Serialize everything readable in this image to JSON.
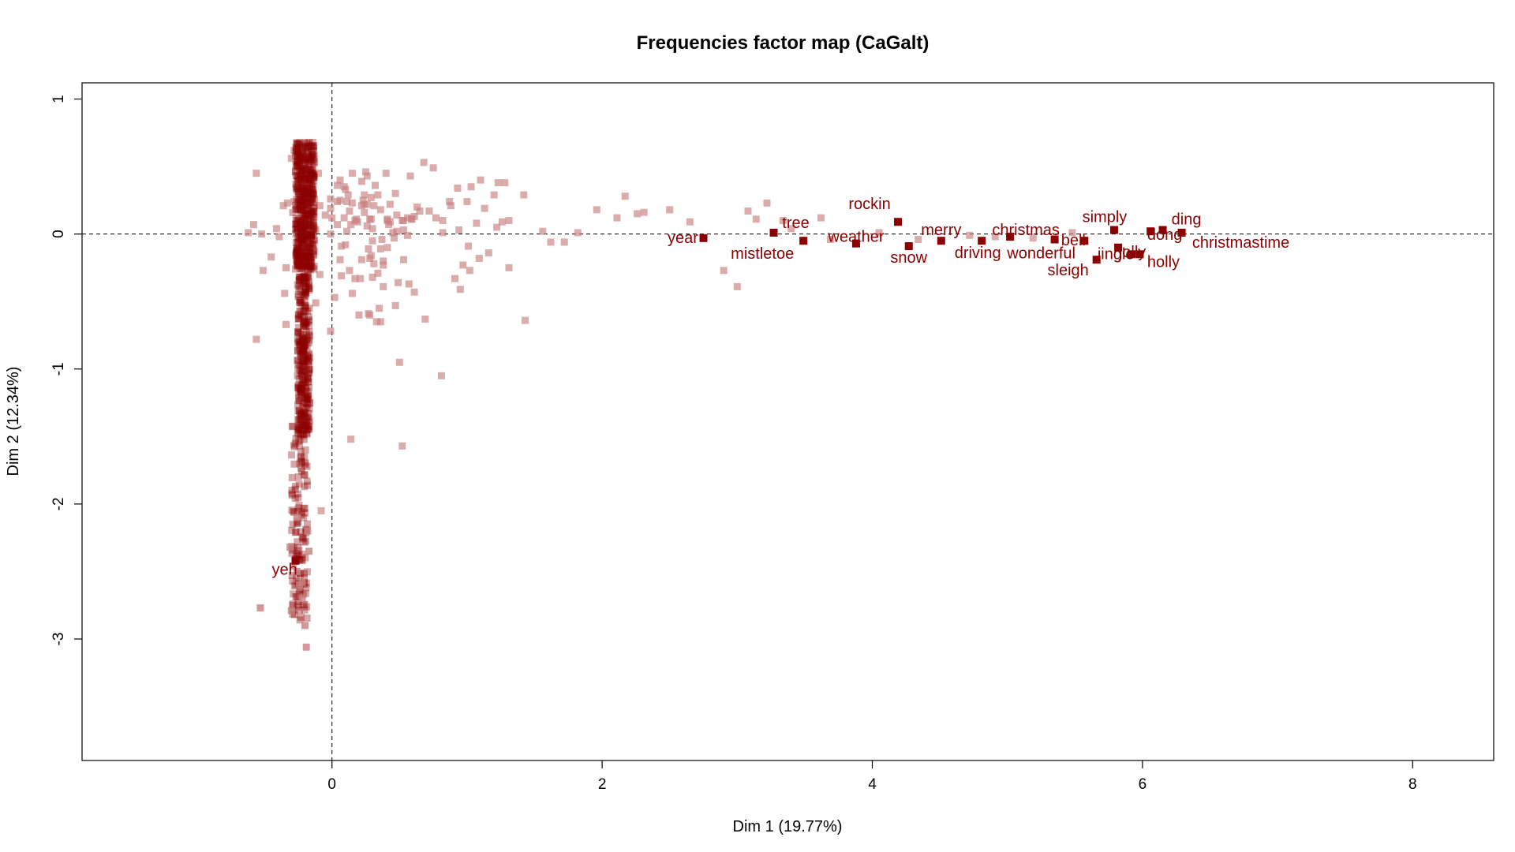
{
  "chart_data": {
    "type": "scatter",
    "title": "Frequencies factor map (CaGalt)",
    "xlabel": "Dim 1 (19.77%)",
    "ylabel": "Dim 2 (12.34%)",
    "xlim": [
      -1.85,
      8.6
    ],
    "ylim": [
      -3.9,
      1.12
    ],
    "xticks": [
      0,
      2,
      4,
      6,
      8
    ],
    "yticks": [
      1,
      0,
      -1,
      -2,
      -3
    ],
    "reference_lines": {
      "x": 0,
      "y": 0,
      "style": "dashed"
    },
    "grid": false,
    "legend": "none",
    "colors": {
      "labeled": "#8b0000",
      "unlabeled": "#c88080"
    },
    "labeled_points": [
      {
        "label": "yeh",
        "x": -0.27,
        "y": -2.42
      },
      {
        "label": "year",
        "x": 2.75,
        "y": -0.03
      },
      {
        "label": "tree",
        "x": 3.27,
        "y": 0.01
      },
      {
        "label": "mistletoe",
        "x": 3.49,
        "y": -0.05
      },
      {
        "label": "weather",
        "x": 3.88,
        "y": -0.07
      },
      {
        "label": "rockin",
        "x": 4.19,
        "y": 0.09
      },
      {
        "label": "snow",
        "x": 4.27,
        "y": -0.09
      },
      {
        "label": "merry",
        "x": 4.51,
        "y": -0.05
      },
      {
        "label": "driving",
        "x": 4.81,
        "y": -0.05
      },
      {
        "label": "christmas",
        "x": 5.02,
        "y": -0.02
      },
      {
        "label": "wonderful",
        "x": 5.35,
        "y": -0.04
      },
      {
        "label": "bell",
        "x": 5.57,
        "y": -0.05
      },
      {
        "label": "sleigh",
        "x": 5.66,
        "y": -0.19
      },
      {
        "label": "simply",
        "x": 5.79,
        "y": 0.03
      },
      {
        "label": "jolly",
        "x": 5.82,
        "y": -0.1
      },
      {
        "label": "jingle",
        "x": 5.92,
        "y": -0.15
      },
      {
        "label": "holly",
        "x": 5.98,
        "y": -0.15
      },
      {
        "label": "dong",
        "x": 6.06,
        "y": 0.02
      },
      {
        "label": "ding",
        "x": 6.15,
        "y": 0.03
      },
      {
        "label": "christmastime",
        "x": 6.29,
        "y": 0.01
      }
    ],
    "other_points": [
      [
        0.26,
        0.43
      ],
      [
        0.14,
        0.07
      ],
      [
        -0.51,
        -0.27
      ],
      [
        0.47,
        0.3
      ],
      [
        0.2,
        -0.6
      ],
      [
        -0.28,
        0.24
      ],
      [
        -0.3,
        0.56
      ],
      [
        0.26,
        0.22
      ],
      [
        0.04,
        0.36
      ],
      [
        0.61,
        0.13
      ],
      [
        -0.62,
        0.01
      ],
      [
        0.28,
        -0.6
      ],
      [
        0.41,
        -0.1
      ],
      [
        -0.56,
        0.45
      ],
      [
        0.49,
        -0.36
      ],
      [
        0.72,
        0.17
      ],
      [
        0.29,
        0.27
      ],
      [
        0.82,
        0.01
      ],
      [
        0.18,
        0.11
      ],
      [
        -0.29,
        0.16
      ],
      [
        -0.09,
        -0.3
      ],
      [
        0.29,
        0.11
      ],
      [
        0.34,
        -0.29
      ],
      [
        0.22,
        -0.19
      ],
      [
        0.11,
        0.02
      ],
      [
        -0.58,
        0.07
      ],
      [
        0.27,
        -0.59
      ],
      [
        0.57,
        -0.37
      ],
      [
        0.24,
        0.16
      ],
      [
        -0.2,
        0.11
      ],
      [
        0.11,
        0.24
      ],
      [
        0.1,
        0.33
      ],
      [
        0.53,
        -0.19
      ],
      [
        0.3,
        0.04
      ],
      [
        -0.35,
        -0.44
      ],
      [
        0.31,
        0.21
      ],
      [
        0.25,
        0.46
      ],
      [
        0.23,
        0.25
      ],
      [
        0.24,
        0.22
      ],
      [
        -0.24,
        0.54
      ],
      [
        0.22,
        0.39
      ],
      [
        -0.01,
        0.19
      ],
      [
        -0.05,
        0.14
      ],
      [
        0.19,
        0.09
      ],
      [
        0.61,
        -0.43
      ],
      [
        0.58,
        0.43
      ],
      [
        0.15,
        -0.44
      ],
      [
        -0.52,
        -0.0
      ],
      [
        0.38,
        -0.2
      ],
      [
        0.21,
        -0.33
      ],
      [
        0.02,
        -0.47
      ],
      [
        0.43,
        0.22
      ],
      [
        0.52,
        0.1
      ],
      [
        0.07,
        -0.09
      ],
      [
        -0.21,
        -0.04
      ],
      [
        0.06,
        0.4
      ],
      [
        0.15,
        0.23
      ],
      [
        0.06,
        -0.19
      ],
      [
        0.27,
        -0.11
      ],
      [
        -0.28,
        0.62
      ],
      [
        0.13,
        -0.27
      ],
      [
        0.59,
        0.11
      ],
      [
        0.48,
        0.14
      ],
      [
        -0.01,
        -0.0
      ],
      [
        0.65,
        0.17
      ],
      [
        0.04,
        0.07
      ],
      [
        0.28,
        -0.18
      ],
      [
        0.41,
        0.1
      ],
      [
        0.33,
        -0.65
      ],
      [
        0.26,
        0.06
      ],
      [
        0.3,
        -0.32
      ],
      [
        0.45,
        0.01
      ],
      [
        0.37,
        -0.04
      ],
      [
        -0.1,
        0.45
      ],
      [
        0.24,
        0.29
      ],
      [
        0.5,
        -0.95
      ],
      [
        0.53,
        0.1
      ],
      [
        -0.01,
        -0.72
      ],
      [
        0.04,
        0.24
      ],
      [
        0.47,
        -0.53
      ],
      [
        0.07,
        -0.31
      ],
      [
        0.42,
        0.07
      ],
      [
        0.13,
        0.17
      ],
      [
        0.09,
        0.35
      ],
      [
        0.17,
        -0.33
      ],
      [
        -0.12,
        -0.51
      ],
      [
        0.35,
        -0.55
      ],
      [
        0.43,
        0.09
      ],
      [
        0.36,
        -0.65
      ],
      [
        0.31,
        -0.22
      ],
      [
        0.22,
        0.21
      ],
      [
        -0.34,
        -0.67
      ],
      [
        0.46,
        -0.03
      ],
      [
        0.12,
        0.29
      ],
      [
        0.1,
        -0.08
      ],
      [
        -0.27,
        0.46
      ],
      [
        -0.09,
        0.21
      ],
      [
        0.29,
        -0.16
      ],
      [
        -0.36,
        0.21
      ],
      [
        0.41,
        0.11
      ],
      [
        0.36,
        -0.11
      ],
      [
        0.38,
        -0.39
      ],
      [
        -0.27,
        0.18
      ],
      [
        0.53,
        0.03
      ],
      [
        0.48,
        0.02
      ],
      [
        0.34,
        0.29
      ],
      [
        0.38,
        -0.23
      ],
      [
        0.15,
        0.45
      ],
      [
        0.17,
        0.1
      ],
      [
        -0.27,
        -0.26
      ],
      [
        -0.0,
        0.12
      ],
      [
        0.56,
        0.12
      ],
      [
        0.09,
        0.12
      ],
      [
        0.28,
        0.11
      ],
      [
        0.59,
        0.11
      ],
      [
        0.06,
        0.25
      ],
      [
        0.32,
        0.36
      ],
      [
        -0.33,
        0.23
      ],
      [
        0.4,
        0.45
      ],
      [
        0.36,
        0.18
      ],
      [
        0.56,
        -0.01
      ],
      [
        0.3,
        -0.05
      ],
      [
        -0.01,
        0.26
      ],
      [
        0.63,
        0.2
      ],
      [
        0.75,
        0.49
      ],
      [
        0.68,
        0.53
      ],
      [
        0.93,
        0.34
      ],
      [
        1.03,
        0.35
      ],
      [
        1.1,
        0.4
      ],
      [
        1.2,
        0.29
      ],
      [
        1.23,
        0.38
      ],
      [
        1.28,
        0.38
      ],
      [
        1.0,
        0.24
      ],
      [
        0.94,
        0.03
      ],
      [
        1.07,
        0.08
      ],
      [
        1.13,
        0.19
      ],
      [
        1.22,
        0.05
      ],
      [
        1.31,
        0.1
      ],
      [
        1.42,
        0.29
      ],
      [
        1.26,
        0.09
      ],
      [
        0.88,
        0.21
      ],
      [
        0.82,
        0.1
      ],
      [
        0.87,
        0.24
      ],
      [
        0.77,
        0.12
      ],
      [
        1.01,
        -0.09
      ],
      [
        0.91,
        -0.33
      ],
      [
        0.97,
        -0.23
      ],
      [
        1.09,
        -0.18
      ],
      [
        0.95,
        -0.41
      ],
      [
        1.02,
        -0.27
      ],
      [
        1.16,
        -0.14
      ],
      [
        1.31,
        -0.25
      ],
      [
        1.43,
        -0.64
      ],
      [
        0.69,
        -0.63
      ],
      [
        0.81,
        -1.05
      ],
      [
        0.52,
        -1.57
      ],
      [
        0.14,
        -1.52
      ],
      [
        -0.08,
        -2.05
      ],
      [
        1.56,
        0.02
      ],
      [
        1.62,
        -0.06
      ],
      [
        1.72,
        -0.06
      ],
      [
        1.82,
        0.01
      ],
      [
        1.96,
        0.18
      ],
      [
        2.11,
        0.12
      ],
      [
        2.17,
        0.28
      ],
      [
        2.26,
        0.15
      ],
      [
        2.31,
        0.16
      ],
      [
        2.5,
        0.18
      ],
      [
        2.65,
        0.09
      ],
      [
        3.08,
        0.17
      ],
      [
        3.14,
        0.11
      ],
      [
        3.22,
        0.23
      ],
      [
        3.34,
        0.1
      ],
      [
        3.4,
        0.04
      ],
      [
        3.62,
        0.12
      ],
      [
        3.69,
        -0.04
      ],
      [
        4.05,
        0.01
      ],
      [
        4.34,
        -0.04
      ],
      [
        4.72,
        -0.01
      ],
      [
        4.91,
        -0.02
      ],
      [
        5.19,
        -0.03
      ],
      [
        5.48,
        0.01
      ],
      [
        2.9,
        -0.27
      ],
      [
        3.0,
        -0.39
      ],
      [
        -0.56,
        -0.78
      ],
      [
        -0.34,
        -0.25
      ],
      [
        -0.26,
        -0.15
      ],
      [
        -0.39,
        -0.02
      ],
      [
        -0.41,
        0.04
      ],
      [
        -0.45,
        -0.17
      ],
      [
        -0.12,
        0.03
      ],
      [
        -0.16,
        -0.21
      ]
    ]
  }
}
